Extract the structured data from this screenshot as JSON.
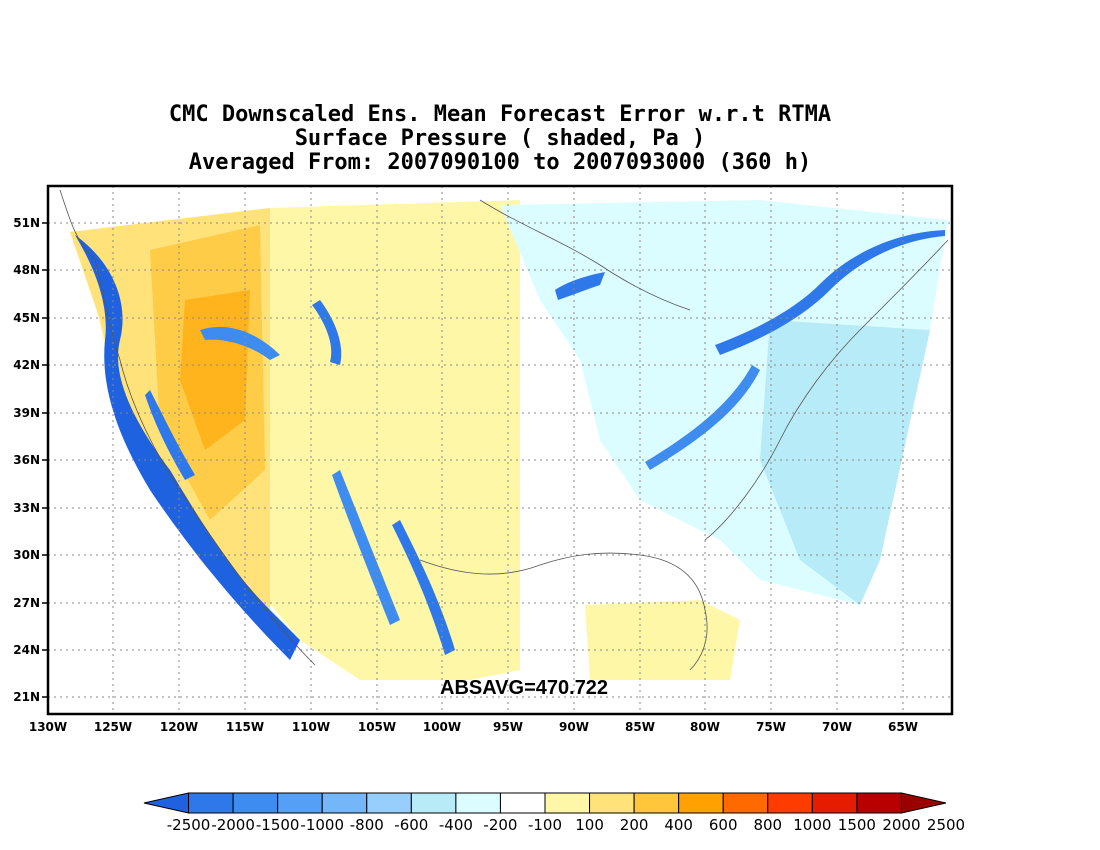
{
  "title": {
    "line1": "CMC Downscaled Ens. Mean Forecast Error w.r.t RTMA",
    "line2": "Surface Pressure ( shaded, Pa )",
    "line3": "Averaged From: 2007090100 to 2007093000 (360 h)"
  },
  "map": {
    "lat_labels": [
      "51N",
      "48N",
      "45N",
      "42N",
      "39N",
      "36N",
      "33N",
      "30N",
      "27N",
      "24N",
      "21N"
    ],
    "lon_labels": [
      "130W",
      "125W",
      "120W",
      "115W",
      "110W",
      "105W",
      "100W",
      "95W",
      "90W",
      "85W",
      "80W",
      "75W",
      "70W",
      "65W"
    ],
    "absavg": "ABSAVG=470.722"
  },
  "colorbar": {
    "colors": [
      "#1f62e0",
      "#2f78ea",
      "#3e8cf0",
      "#55a0f4",
      "#74b6f8",
      "#98cefb",
      "#b8ebf8",
      "#dcfdff",
      "#ffffff",
      "#fff7a8",
      "#ffe37a",
      "#ffc63c",
      "#ffa100",
      "#ff6a00",
      "#ff3c00",
      "#e61c00",
      "#b80000",
      "#9a0000"
    ],
    "labels": [
      "-2500",
      "-2000",
      "-1500",
      "-1000",
      "-800",
      "-600",
      "-400",
      "-200",
      "-100",
      "100",
      "200",
      "400",
      "600",
      "800",
      "1000",
      "1500",
      "2000",
      "2500"
    ]
  }
}
